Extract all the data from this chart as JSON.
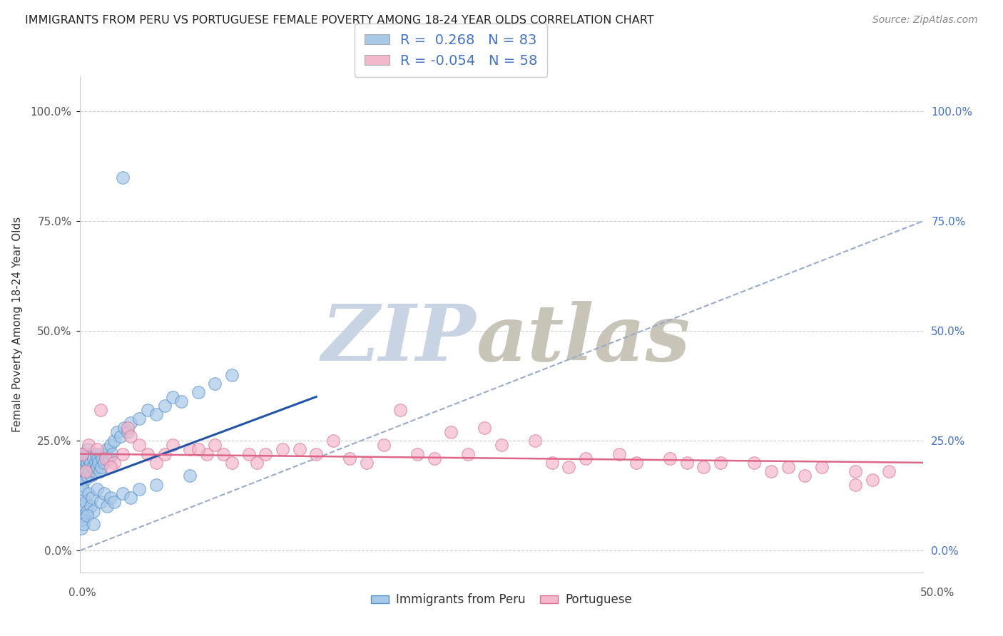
{
  "title": "IMMIGRANTS FROM PERU VS PORTUGUESE FEMALE POVERTY AMONG 18-24 YEAR OLDS CORRELATION CHART",
  "source": "Source: ZipAtlas.com",
  "ylabel": "Female Poverty Among 18-24 Year Olds",
  "ytick_vals": [
    0,
    25,
    50,
    75,
    100
  ],
  "ytick_labels": [
    "0.0%",
    "25.0%",
    "50.0%",
    "75.0%",
    "100.0%"
  ],
  "xlim": [
    0,
    50
  ],
  "ylim": [
    -5,
    108
  ],
  "plot_ylim_bottom": -5,
  "plot_ylim_top": 108,
  "legend1_label": "Immigrants from Peru",
  "legend2_label": "Portuguese",
  "R1": "0.268",
  "N1": "83",
  "R2": "-0.054",
  "N2": "58",
  "blue_face": "#a8c8e8",
  "blue_edge": "#5590c8",
  "pink_face": "#f4b8cc",
  "pink_edge": "#d87090",
  "line1_color": "#2255aa",
  "line2_color": "#dd6688",
  "dash_color": "#99aacc",
  "watermark_zip_color": "#c8d4e4",
  "watermark_atlas_color": "#c8c4b8",
  "grid_color": "#cccccc",
  "title_color": "#222222",
  "source_color": "#888888",
  "right_tick_color": "#4472c4",
  "left_tick_color": "#555555",
  "blue_scatter_x": [
    0.05,
    0.08,
    0.1,
    0.12,
    0.15,
    0.18,
    0.2,
    0.22,
    0.25,
    0.28,
    0.3,
    0.32,
    0.35,
    0.38,
    0.4,
    0.42,
    0.45,
    0.48,
    0.5,
    0.55,
    0.6,
    0.65,
    0.7,
    0.75,
    0.8,
    0.85,
    0.9,
    0.95,
    1.0,
    1.05,
    1.1,
    1.15,
    1.2,
    1.25,
    1.3,
    1.4,
    1.5,
    1.6,
    1.7,
    1.8,
    1.9,
    2.0,
    2.2,
    2.4,
    2.6,
    2.8,
    3.0,
    3.5,
    4.0,
    4.5,
    5.0,
    5.5,
    6.0,
    7.0,
    8.0,
    9.0,
    0.05,
    0.1,
    0.15,
    0.2,
    0.3,
    0.4,
    0.5,
    0.6,
    0.7,
    0.8,
    1.0,
    1.2,
    1.4,
    1.6,
    1.8,
    2.0,
    2.5,
    3.0,
    3.5,
    4.5,
    6.5,
    0.05,
    0.1,
    0.2,
    0.4,
    0.8,
    2.5
  ],
  "blue_scatter_y": [
    20,
    18,
    22,
    15,
    19,
    17,
    21,
    20,
    18,
    16,
    22,
    19,
    21,
    18,
    20,
    17,
    23,
    19,
    21,
    18,
    20,
    17,
    22,
    19,
    21,
    18,
    20,
    22,
    19,
    21,
    20,
    18,
    22,
    19,
    21,
    20,
    22,
    23,
    21,
    24,
    22,
    25,
    27,
    26,
    28,
    27,
    29,
    30,
    32,
    31,
    33,
    35,
    34,
    36,
    38,
    40,
    12,
    10,
    14,
    8,
    11,
    9,
    13,
    10,
    12,
    9,
    14,
    11,
    13,
    10,
    12,
    11,
    13,
    12,
    14,
    15,
    17,
    5,
    7,
    6,
    8,
    6,
    85
  ],
  "pink_scatter_x": [
    0.1,
    0.5,
    1.0,
    1.5,
    2.0,
    2.5,
    3.5,
    5.0,
    6.5,
    8.0,
    10.0,
    12.0,
    15.0,
    18.0,
    22.0,
    27.0,
    32.0,
    38.0,
    44.0,
    48.0,
    1.2,
    2.8,
    5.5,
    7.5,
    10.5,
    13.0,
    16.0,
    20.0,
    25.0,
    30.0,
    36.0,
    42.0,
    46.0,
    3.0,
    7.0,
    11.0,
    17.0,
    23.0,
    29.0,
    35.0,
    41.0,
    47.0,
    4.0,
    9.0,
    14.0,
    21.0,
    28.0,
    37.0,
    43.0,
    0.3,
    1.8,
    4.5,
    8.5,
    19.0,
    33.0,
    46.0,
    24.0,
    40.0
  ],
  "pink_scatter_y": [
    22,
    24,
    23,
    21,
    20,
    22,
    24,
    22,
    23,
    24,
    22,
    23,
    25,
    24,
    27,
    25,
    22,
    20,
    19,
    18,
    32,
    28,
    24,
    22,
    20,
    23,
    21,
    22,
    24,
    21,
    20,
    19,
    18,
    26,
    23,
    22,
    20,
    22,
    19,
    21,
    18,
    16,
    22,
    20,
    22,
    21,
    20,
    19,
    17,
    18,
    19,
    20,
    22,
    32,
    20,
    15,
    28,
    20
  ],
  "blue_line_x0": 0,
  "blue_line_y0": 15,
  "blue_line_x1": 14,
  "blue_line_y1": 35,
  "pink_line_x0": 0,
  "pink_line_y0": 22,
  "pink_line_x1": 50,
  "pink_line_y1": 20,
  "dash_line_x0": 0,
  "dash_line_y0": 0,
  "dash_line_x1": 50,
  "dash_line_y1": 75
}
